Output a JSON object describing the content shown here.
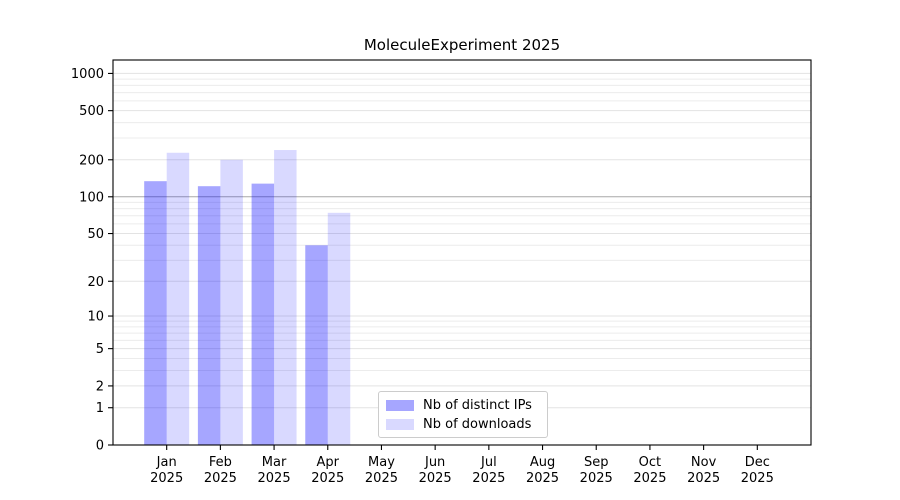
{
  "title": "MoleculeExperiment 2025",
  "chart_data": {
    "type": "bar",
    "title": "MoleculeExperiment 2025",
    "categories": [
      "Jan",
      "Feb",
      "Mar",
      "Apr",
      "May",
      "Jun",
      "Jul",
      "Aug",
      "Sep",
      "Oct",
      "Nov",
      "Dec"
    ],
    "year": "2025",
    "series": [
      {
        "name": "Nb of distinct IPs",
        "color": "rgba(0,0,255,0.35)",
        "swatch": "#a6a6ff",
        "values": [
          134,
          122,
          128,
          40,
          null,
          null,
          null,
          null,
          null,
          null,
          null,
          null
        ]
      },
      {
        "name": "Nb of downloads",
        "color": "rgba(0,0,255,0.15)",
        "swatch": "#d9d9ff",
        "values": [
          228,
          200,
          240,
          74,
          null,
          null,
          null,
          null,
          null,
          null,
          null,
          null
        ]
      }
    ],
    "yscale": "log1p",
    "ylim": [
      0,
      1284
    ],
    "yticks": [
      0,
      1,
      2,
      5,
      10,
      20,
      50,
      100,
      200,
      500,
      1000
    ],
    "yminorticks": [
      3,
      4,
      6,
      7,
      8,
      9,
      30,
      40,
      60,
      70,
      80,
      90,
      300,
      400,
      600,
      700,
      800,
      900
    ],
    "emphasized_gridline": 100,
    "grid": true,
    "legend_position": "lower-center",
    "colors": {
      "gridline_minor": "#ececec",
      "gridline_major": "#e3e3e3",
      "gridline_emphasis": "#a8a8a8",
      "axis": "#000000",
      "background": "#ffffff"
    }
  }
}
